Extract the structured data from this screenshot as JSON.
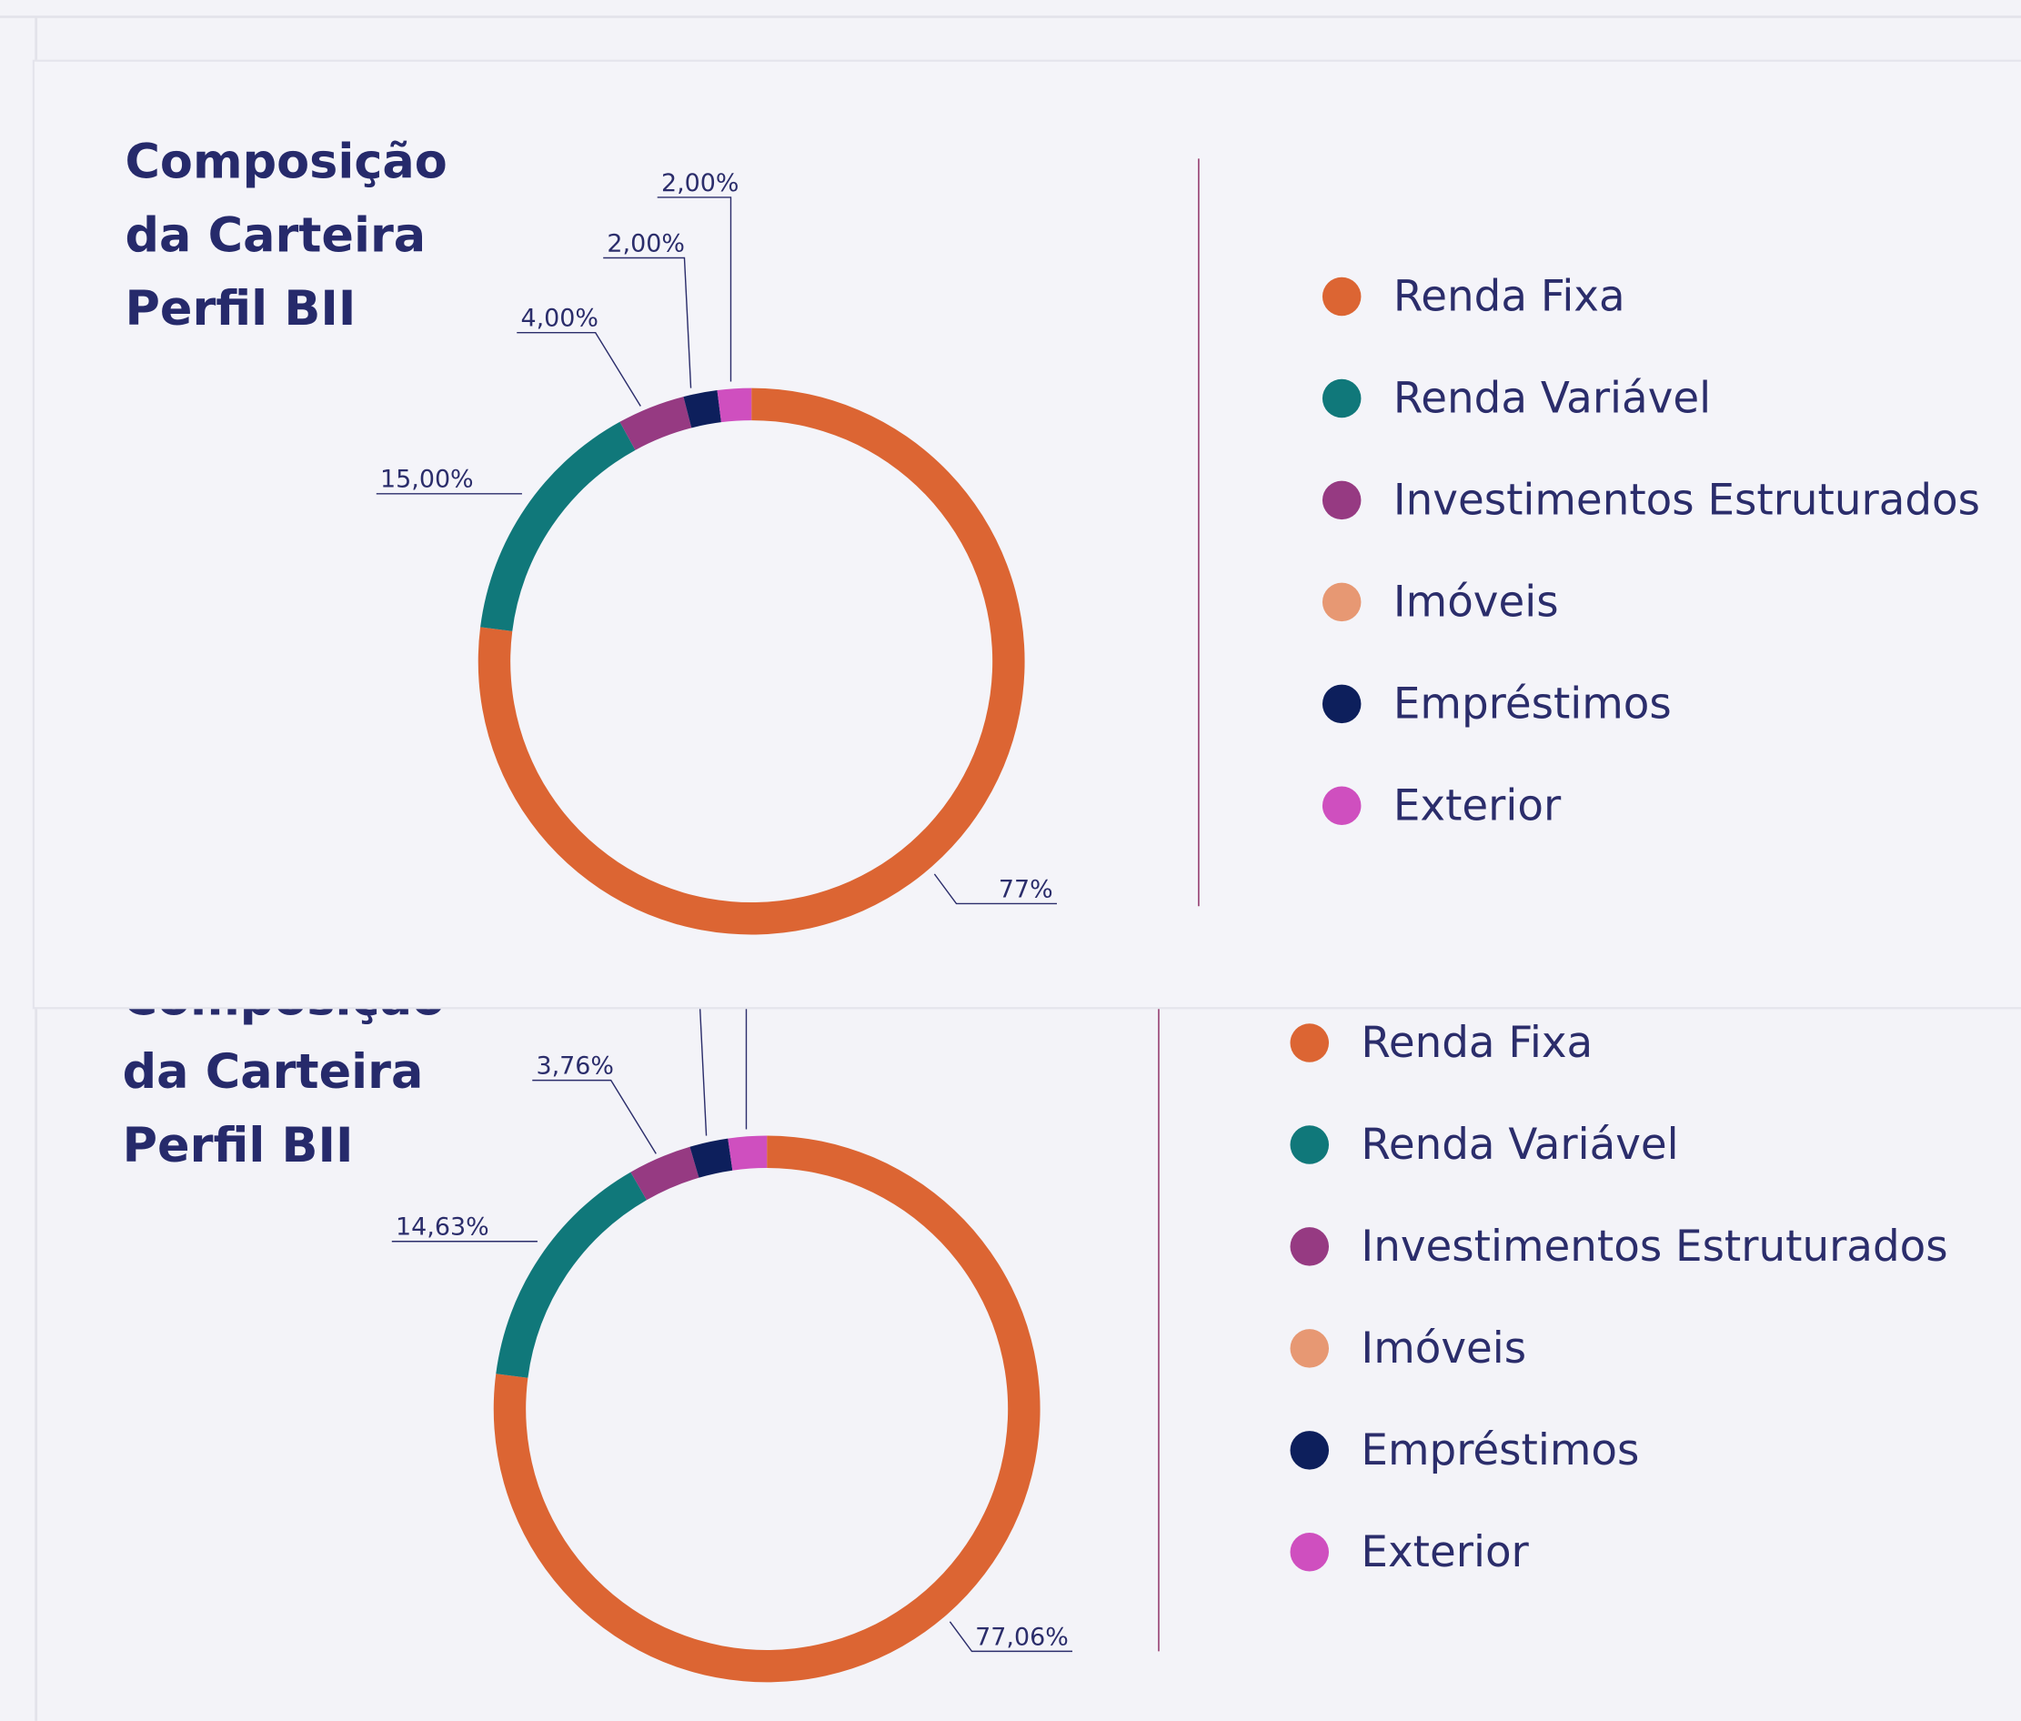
{
  "chart_data": [
    {
      "type": "donut",
      "title": "Composição da Carteira Perfil BII",
      "categories": [
        "Renda Fixa",
        "Renda Variável",
        "Investimentos Estruturados",
        "Imóveis",
        "Empréstimos",
        "Exterior"
      ],
      "values": [
        77,
        15,
        4,
        0,
        2,
        2
      ],
      "value_labels": [
        "77%",
        "15,00%",
        "4,00%",
        null,
        "2,00%",
        "2,00%"
      ],
      "colors": [
        "#dc6533",
        "#10787a",
        "#963a82",
        "#e79873",
        "#0d1f5c",
        "#cf4fbf"
      ]
    },
    {
      "type": "donut",
      "title": "Composição da Carteira Perfil BII",
      "categories": [
        "Renda Fixa",
        "Renda Variável",
        "Investimentos Estruturados",
        "Imóveis",
        "Empréstimos",
        "Exterior"
      ],
      "values": [
        77.06,
        14.63,
        3.76,
        0,
        2.27,
        2.28
      ],
      "value_labels": [
        "77,06%",
        "14,63%",
        "3,76%",
        null,
        null,
        null
      ],
      "colors": [
        "#dc6533",
        "#10787a",
        "#963a82",
        "#e79873",
        "#0d1f5c",
        "#cf4fbf"
      ]
    }
  ]
}
